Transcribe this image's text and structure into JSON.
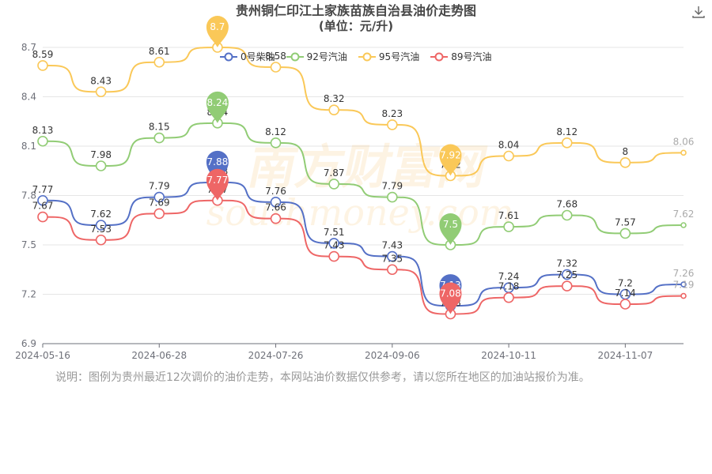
{
  "header": {
    "title": "贵州铜仁印江土家族苗族自治县油价走势图",
    "subtitle": "(单位：元/升)"
  },
  "note": "说明：图例为贵州最近12次调价的油价走势，本网站油价数据仅供参考，请以您所在地区的加油站报价为准。",
  "watermark": {
    "text": "南方财富网",
    "domain": "southmoney.com",
    "color": "#f5a623"
  },
  "chart_data": {
    "type": "line",
    "x_ticks": [
      "2024-05-16",
      "2024-06-28",
      "2024-07-26",
      "2024-09-06",
      "2024-10-11",
      "2024-11-07"
    ],
    "y_ticks": [
      "6.9",
      "7.2",
      "7.5",
      "7.8",
      "8.1",
      "8.4",
      "8.7"
    ],
    "ylim": [
      6.9,
      8.7
    ],
    "grid": true,
    "legend_position": "top",
    "series": [
      {
        "name": "0号柴油",
        "color": "#5470c6",
        "values": [
          7.77,
          7.62,
          7.79,
          7.88,
          7.76,
          7.51,
          7.43,
          7.13,
          7.24,
          7.32,
          7.2,
          7.26
        ],
        "max_index": 3,
        "min_index": 7
      },
      {
        "name": "92号汽油",
        "color": "#91cc75",
        "values": [
          8.13,
          7.98,
          8.15,
          8.24,
          8.12,
          7.87,
          7.79,
          7.5,
          7.61,
          7.68,
          7.57,
          7.62
        ],
        "max_index": 3,
        "min_index": 7
      },
      {
        "name": "95号汽油",
        "color": "#fac858",
        "values": [
          8.59,
          8.43,
          8.61,
          8.7,
          8.58,
          8.32,
          8.23,
          7.92,
          8.04,
          8.12,
          8.0,
          8.06
        ],
        "max_index": 3,
        "min_index": 7
      },
      {
        "name": "89号汽油",
        "color": "#ee6666",
        "values": [
          7.67,
          7.53,
          7.69,
          7.77,
          7.66,
          7.43,
          7.35,
          7.08,
          7.18,
          7.25,
          7.14,
          7.19
        ],
        "max_index": 3,
        "min_index": 7
      }
    ]
  }
}
